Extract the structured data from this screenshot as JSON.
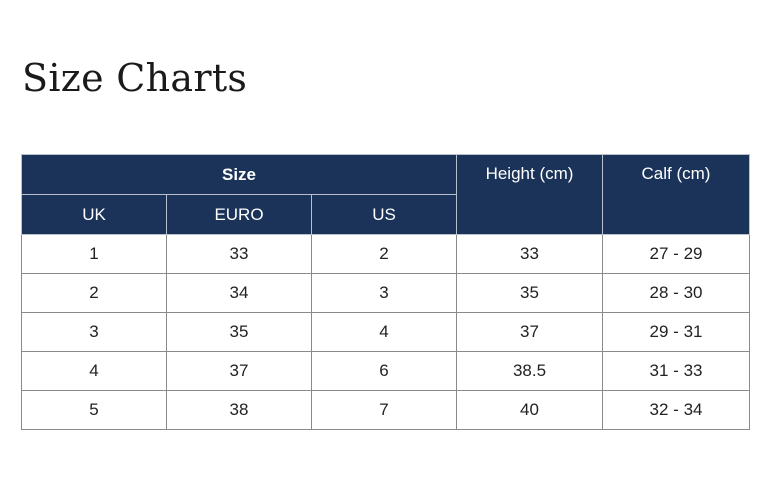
{
  "title": "Size Charts",
  "table": {
    "group_header": "Size",
    "sub_headers": [
      "UK",
      "EURO",
      "US"
    ],
    "height_header": "Height (cm)",
    "calf_header": "Calf (cm)",
    "rows": [
      [
        "1",
        "33",
        "2",
        "33",
        "27 - 29"
      ],
      [
        "2",
        "34",
        "3",
        "35",
        "28 - 30"
      ],
      [
        "3",
        "35",
        "4",
        "37",
        "29 - 31"
      ],
      [
        "4",
        "37",
        "6",
        "38.5",
        "31 - 33"
      ],
      [
        "5",
        "38",
        "7",
        "40",
        "32 - 34"
      ]
    ]
  },
  "colors": {
    "header_bg": "#1b3358",
    "header_text": "#ffffff",
    "border": "#8a8a8a"
  }
}
